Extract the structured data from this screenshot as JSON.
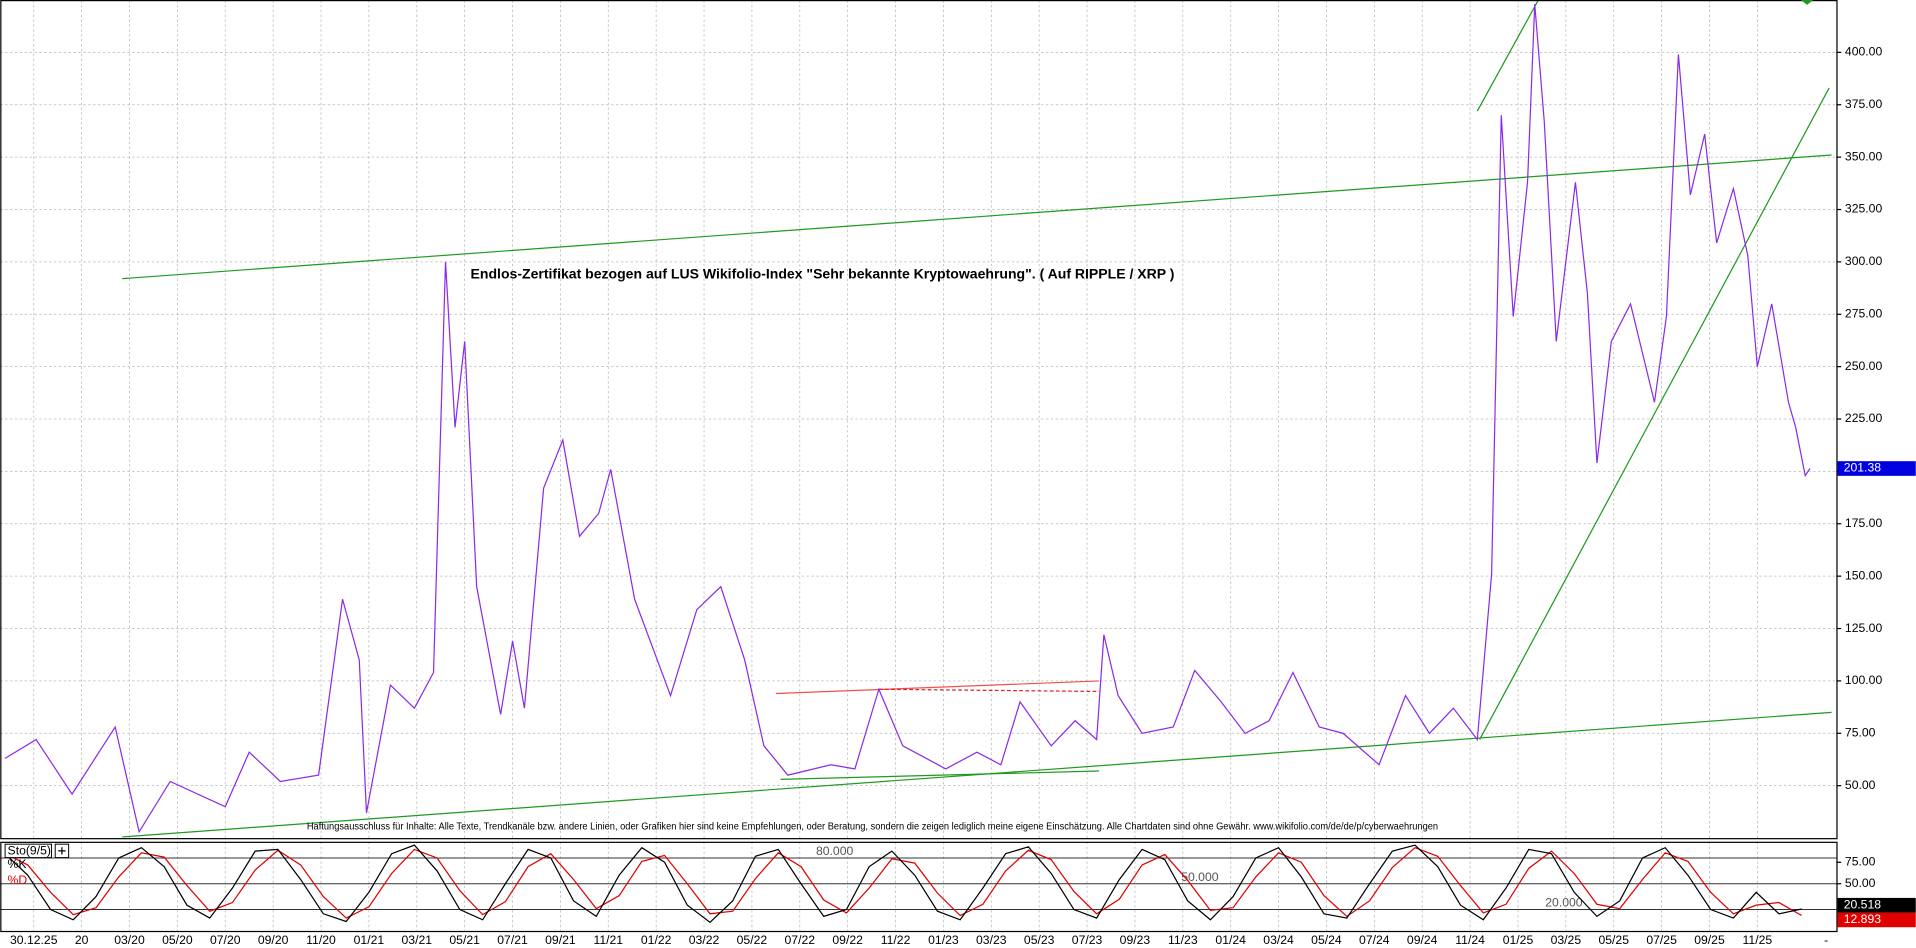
{
  "chart_data": [
    {
      "type": "line",
      "color": "#8c2be6",
      "annotation": "Endlos-Zertifikat bezogen auf LUS Wikifolio-Index \"Sehr bekannte Kryptowaehrung\". ( Auf RIPPLE / XRP )",
      "disclaimer": "Haftungsausschluss für Inhalte: Alle Texte, Trendkanäle bzw. andere Linien, oder Grafiken hier sind keine Empfehlungen, oder Beratung, sondern die zeigen lediglich meine eigene Einschätzung. Alle Chartdaten sind ohne Gewähr. www.wikifolio.com/de/de/p/cyberwaehrungen",
      "x": [
        -3.2,
        -1.9,
        -0.4,
        1.4,
        2.4,
        3.7,
        6.0,
        7.0,
        8.3,
        9.9,
        10.9,
        11.6,
        11.9,
        12.9,
        13.9,
        14.7,
        15.2,
        15.6,
        16.0,
        16.5,
        17.5,
        18.0,
        18.5,
        19.3,
        20.1,
        20.8,
        21.6,
        22.1,
        23.1,
        24.6,
        25.7,
        26.7,
        27.7,
        28.5,
        29.5,
        31.3,
        32.3,
        33.3,
        34.3,
        36.1,
        37.4,
        38.4,
        39.2,
        40.5,
        41.5,
        42.4,
        42.7,
        43.3,
        44.3,
        45.6,
        46.5,
        47.6,
        48.6,
        49.6,
        50.6,
        51.7,
        52.7,
        54.2,
        55.3,
        56.3,
        57.3,
        58.3,
        58.9,
        59.3,
        59.8,
        60.4,
        60.7,
        61.1,
        61.6,
        62.4,
        62.9,
        63.3,
        63.9,
        64.7,
        65.7,
        66.2,
        66.7,
        67.2,
        67.8,
        68.3,
        69.0,
        69.6,
        70.0,
        70.6,
        71.3,
        71.6,
        72.0,
        72.2
      ],
      "values": [
        63,
        72,
        46,
        78,
        28,
        52,
        40,
        66,
        52,
        55,
        139,
        110,
        37,
        98,
        87,
        104,
        300,
        221,
        262,
        145,
        84,
        119,
        87,
        192,
        215,
        169,
        180,
        201,
        139,
        93,
        134,
        145,
        110,
        69,
        55,
        60,
        58,
        96,
        69,
        58,
        66,
        60,
        90,
        69,
        81,
        72,
        122,
        93,
        75,
        78,
        105,
        90,
        75,
        81,
        104,
        78,
        75,
        60,
        93,
        75,
        87,
        72,
        151,
        370,
        274,
        338,
        423,
        367,
        262,
        338,
        285,
        204,
        262,
        280,
        233,
        274,
        399,
        332,
        361,
        309,
        335,
        303,
        250,
        280,
        233,
        221,
        198,
        201.38
      ],
      "trendlines": [
        {
          "color": "#1f9a1f",
          "dash": false,
          "x": [
            1.7,
            73.1
          ],
          "values": [
            292,
            351
          ]
        },
        {
          "color": "#1f9a1f",
          "dash": false,
          "x": [
            1.7,
            73.1
          ],
          "values": [
            25.5,
            85
          ]
        },
        {
          "color": "#1f9a1f",
          "dash": false,
          "x": [
            58.4,
            73.0
          ],
          "values": [
            72,
            383
          ]
        },
        {
          "color": "#1f9a1f",
          "dash": false,
          "x": [
            58.3,
            60.9
          ],
          "values": [
            372,
            426
          ]
        },
        {
          "color": "#1f9a1f",
          "dash": false,
          "x": [
            29.2,
            42.5
          ],
          "values": [
            53,
            57
          ]
        },
        {
          "color": "#f05050",
          "dash": false,
          "x": [
            29.0,
            42.5
          ],
          "values": [
            94,
            100
          ]
        },
        {
          "color": "#e02020",
          "dash": true,
          "x": [
            33.3,
            42.5
          ],
          "values": [
            96,
            95
          ]
        }
      ],
      "xlim": [
        -3.4,
        73.3
      ],
      "ylim": [
        25,
        425
      ],
      "xticks": [
        {
          "value": -2,
          "label": "30.12.25"
        },
        {
          "value": 0,
          "label": "20"
        },
        {
          "value": 2,
          "label": "03/20"
        },
        {
          "value": 4,
          "label": "05/20"
        },
        {
          "value": 6,
          "label": "07/20"
        },
        {
          "value": 8,
          "label": "09/20"
        },
        {
          "value": 10,
          "label": "11/20"
        },
        {
          "value": 12,
          "label": "01/21"
        },
        {
          "value": 14,
          "label": "03/21"
        },
        {
          "value": 16,
          "label": "05/21"
        },
        {
          "value": 18,
          "label": "07/21"
        },
        {
          "value": 20,
          "label": "09/21"
        },
        {
          "value": 22,
          "label": "11/21"
        },
        {
          "value": 24,
          "label": "01/22"
        },
        {
          "value": 26,
          "label": "03/22"
        },
        {
          "value": 28,
          "label": "05/22"
        },
        {
          "value": 30,
          "label": "07/22"
        },
        {
          "value": 32,
          "label": "09/22"
        },
        {
          "value": 34,
          "label": "11/22"
        },
        {
          "value": 36,
          "label": "01/23"
        },
        {
          "value": 38,
          "label": "03/23"
        },
        {
          "value": 40,
          "label": "05/23"
        },
        {
          "value": 42,
          "label": "07/23"
        },
        {
          "value": 44,
          "label": "09/23"
        },
        {
          "value": 46,
          "label": "11/23"
        },
        {
          "value": 48,
          "label": "01/24"
        },
        {
          "value": 50,
          "label": "03/24"
        },
        {
          "value": 52,
          "label": "05/24"
        },
        {
          "value": 54,
          "label": "07/24"
        },
        {
          "value": 56,
          "label": "09/24"
        },
        {
          "value": 58,
          "label": "11/24"
        },
        {
          "value": 60,
          "label": "01/25"
        },
        {
          "value": 62,
          "label": "03/25"
        },
        {
          "value": 64,
          "label": "05/25"
        },
        {
          "value": 66,
          "label": "07/25"
        },
        {
          "value": 68,
          "label": "09/25"
        },
        {
          "value": 70,
          "label": "11/25"
        }
      ],
      "yticks": [
        {
          "value": 50,
          "label": "50.00"
        },
        {
          "value": 75,
          "label": "75.00"
        },
        {
          "value": 100,
          "label": "100.00"
        },
        {
          "value": 125,
          "label": "125.00"
        },
        {
          "value": 150,
          "label": "150.00"
        },
        {
          "value": 175,
          "label": "175.00"
        },
        {
          "value": 200,
          "label": "200.00"
        },
        {
          "value": 225,
          "label": "225.00"
        },
        {
          "value": 250,
          "label": "250.00"
        },
        {
          "value": 275,
          "label": "275.00"
        },
        {
          "value": 300,
          "label": "300.00"
        },
        {
          "value": 325,
          "label": "325.00"
        },
        {
          "value": 350,
          "label": "350.00"
        },
        {
          "value": 375,
          "label": "375.00"
        },
        {
          "value": 400,
          "label": "400.00"
        }
      ],
      "grid": true
    },
    {
      "type": "line",
      "legend_title": "Sto(9/5)",
      "x": [
        -3.2,
        -2.25,
        -1.3,
        -0.35,
        0.6,
        1.55,
        2.5,
        3.45,
        4.4,
        5.35,
        6.3,
        7.25,
        8.2,
        9.15,
        10.1,
        11.05,
        12,
        12.95,
        13.9,
        14.85,
        15.8,
        16.75,
        17.7,
        18.65,
        19.6,
        20.55,
        21.5,
        22.45,
        23.4,
        24.35,
        25.3,
        26.25,
        27.2,
        28.15,
        29.1,
        30.05,
        31,
        31.95,
        32.9,
        33.85,
        34.8,
        35.75,
        36.7,
        37.65,
        38.6,
        39.55,
        40.5,
        41.45,
        42.4,
        43.35,
        44.3,
        45.25,
        46.2,
        47.15,
        48.1,
        49.05,
        50,
        50.95,
        51.9,
        52.85,
        53.8,
        54.75,
        55.7,
        56.65,
        57.6,
        58.55,
        59.5,
        60.45,
        61.4,
        62.35,
        63.3,
        64.25,
        65.2,
        66.15,
        67.1,
        68.05,
        69,
        69.95,
        70.9,
        71.85
      ],
      "series": [
        {
          "name": "%K",
          "color": "#000000",
          "values": [
            85,
            60,
            20,
            8,
            35,
            80,
            92,
            70,
            25,
            10,
            45,
            88,
            90,
            55,
            15,
            6,
            40,
            85,
            95,
            65,
            20,
            8,
            50,
            90,
            80,
            30,
            12,
            60,
            92,
            75,
            25,
            5,
            30,
            82,
            90,
            50,
            12,
            20,
            70,
            88,
            60,
            18,
            8,
            45,
            85,
            93,
            62,
            20,
            10,
            55,
            90,
            78,
            30,
            8,
            35,
            80,
            92,
            58,
            15,
            10,
            50,
            88,
            95,
            70,
            25,
            8,
            45,
            90,
            85,
            40,
            12,
            30,
            80,
            92,
            60,
            20,
            10,
            40,
            15,
            20.518
          ]
        },
        {
          "name": "%D",
          "color": "#e00000",
          "values": [
            85,
            72,
            40,
            14,
            22,
            58,
            86,
            81,
            48,
            18,
            28,
            66,
            89,
            72,
            35,
            10,
            23,
            62,
            90,
            80,
            42,
            14,
            29,
            70,
            85,
            55,
            21,
            36,
            76,
            83,
            50,
            15,
            18,
            56,
            86,
            70,
            31,
            16,
            45,
            79,
            74,
            39,
            13,
            26,
            65,
            89,
            78,
            41,
            15,
            32,
            72,
            84,
            54,
            19,
            22,
            58,
            86,
            75,
            36,
            12,
            30,
            69,
            92,
            82,
            48,
            16,
            26,
            68,
            88,
            62,
            26,
            21,
            55,
            86,
            76,
            40,
            15,
            25,
            28,
            12.893
          ]
        }
      ],
      "ylim": [
        -5,
        99
      ],
      "yticks": [
        {
          "value": 50,
          "label": "50.00"
        },
        {
          "value": 75,
          "label": "75.00"
        }
      ],
      "levels": [
        {
          "value": 80,
          "label": "80.000"
        },
        {
          "value": 50,
          "label": "50.000"
        },
        {
          "value": 20,
          "label": "20.000"
        }
      ]
    }
  ]
}
